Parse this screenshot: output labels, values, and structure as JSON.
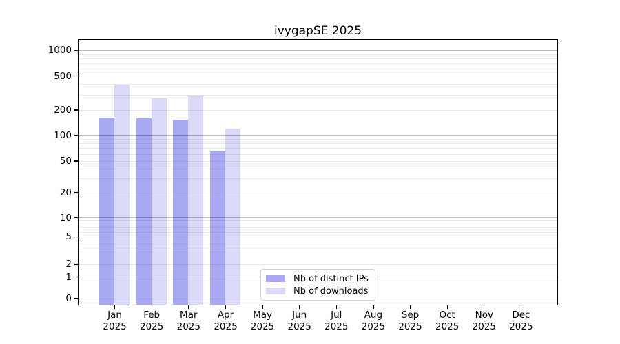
{
  "title": "ivygapSE 2025",
  "legend": {
    "items": [
      {
        "label": "Nb of distinct IPs",
        "color": "#a9a9f3"
      },
      {
        "label": "Nb of downloads",
        "color": "#dadaf8"
      }
    ]
  },
  "chart_data": {
    "type": "bar",
    "title": "ivygapSE 2025",
    "categories": [
      "Jan",
      "Feb",
      "Mar",
      "Apr",
      "May",
      "Jun",
      "Jul",
      "Aug",
      "Sep",
      "Oct",
      "Nov",
      "Dec"
    ],
    "category_year": "2025",
    "series": [
      {
        "name": "Nb of distinct IPs",
        "color": "#a9a9f3",
        "values": [
          166,
          162,
          157,
          66,
          null,
          null,
          null,
          null,
          null,
          null,
          null,
          null
        ]
      },
      {
        "name": "Nb of downloads",
        "color": "#dadaf8",
        "values": [
          405,
          281,
          294,
          122,
          null,
          null,
          null,
          null,
          null,
          null,
          null,
          null
        ]
      }
    ],
    "y_ticks": [
      0,
      1,
      2,
      5,
      10,
      20,
      50,
      100,
      200,
      500,
      1000
    ],
    "y_minor_ticks": [
      3,
      4,
      6,
      7,
      8,
      9,
      30,
      40,
      60,
      70,
      80,
      90,
      300,
      400,
      600,
      700,
      800,
      900
    ],
    "y_major_grid": [
      1,
      10,
      100,
      1000
    ],
    "y_scale": "symlog",
    "ylim_top": 1400,
    "grid": "horizontal, major and minor, drawn above bars",
    "legend_position": "inside bottom-center",
    "xlabel": "",
    "ylabel": ""
  }
}
